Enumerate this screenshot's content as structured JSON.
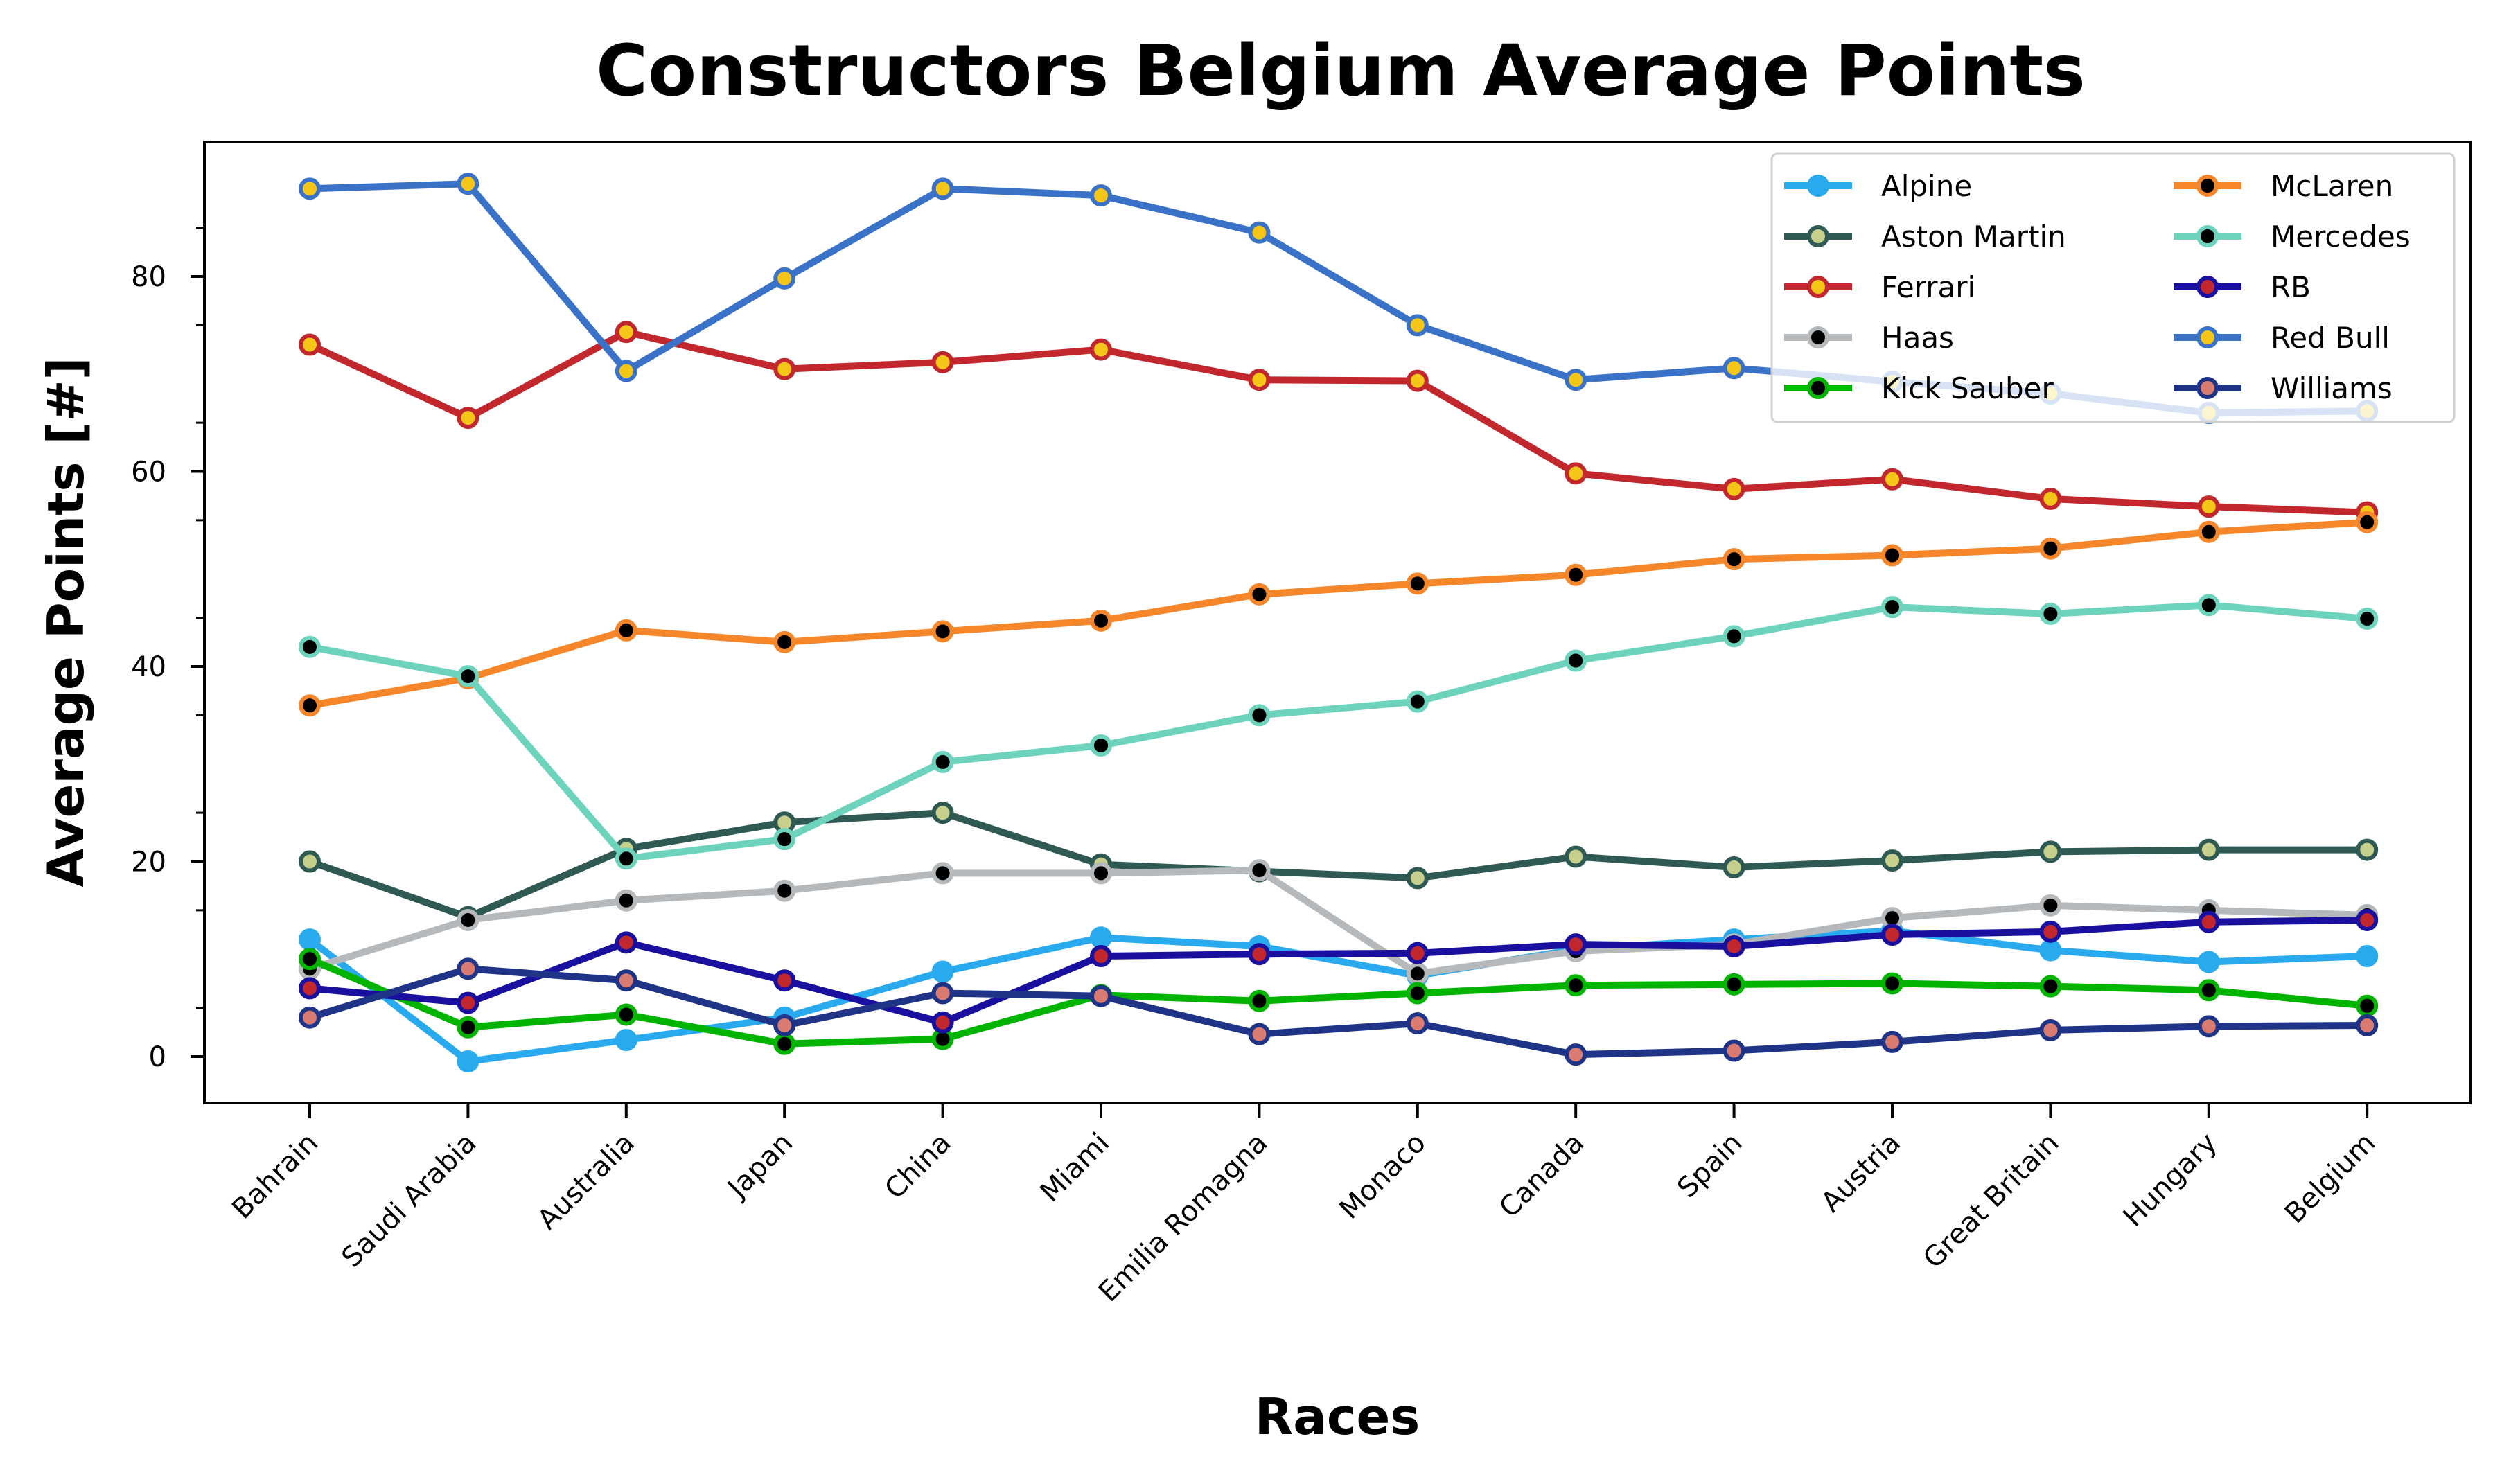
{
  "chart_data": {
    "type": "line",
    "title": "Constructors Belgium Average Points",
    "xlabel": "Races",
    "ylabel": "Average Points [#]",
    "ylim": [
      -5,
      94
    ],
    "yticks": [
      0,
      20,
      40,
      60,
      80
    ],
    "grid": false,
    "legend_position": "top-right",
    "categories": [
      "Bahrain",
      "Saudi Arabia",
      "Australia",
      "Japan",
      "China",
      "Miami",
      "Emilia Romagna",
      "Monaco",
      "Canada",
      "Spain",
      "Austria",
      "Great Britain",
      "Hungary",
      "Belgium"
    ],
    "series": [
      {
        "name": "Alpine",
        "color": "#29aaee",
        "marker_fill": "#29aaee",
        "values": [
          12,
          -0.5,
          1.7,
          4,
          8.7,
          12.2,
          11.3,
          8.3,
          11,
          12,
          12.9,
          10.9,
          9.7,
          10.3
        ]
      },
      {
        "name": "Aston Martin",
        "color": "#2f5a53",
        "marker_fill": "#c7cf8c",
        "values": [
          20,
          14.3,
          21.3,
          24,
          25,
          19.7,
          19,
          18.3,
          20.5,
          19.4,
          20.1,
          21,
          21.2,
          21.2
        ]
      },
      {
        "name": "Ferrari",
        "color": "#c1272d",
        "marker_fill": "#f5c518",
        "values": [
          73,
          65.5,
          74.3,
          70.5,
          71.2,
          72.5,
          69.4,
          69.3,
          59.8,
          58.2,
          59.2,
          57.2,
          56.4,
          55.8
        ]
      },
      {
        "name": "Haas",
        "color": "#b6b9bc",
        "marker_fill": "#000000",
        "values": [
          9,
          14,
          16,
          17,
          18.8,
          18.8,
          19.1,
          8.5,
          10.8,
          11.5,
          14.2,
          15.5,
          15,
          14.5
        ]
      },
      {
        "name": "Kick Sauber",
        "color": "#00b400",
        "marker_fill": "#000000",
        "values": [
          10,
          3,
          4.3,
          1.3,
          1.8,
          6.3,
          5.7,
          6.5,
          7.3,
          7.4,
          7.5,
          7.2,
          6.8,
          5.2
        ]
      },
      {
        "name": "McLaren",
        "color": "#f5862a",
        "marker_fill": "#000000",
        "values": [
          36,
          38.8,
          43.7,
          42.5,
          43.6,
          44.7,
          47.4,
          48.5,
          49.4,
          51,
          51.4,
          52.1,
          53.8,
          54.8
        ]
      },
      {
        "name": "Mercedes",
        "color": "#6dd3bd",
        "marker_fill": "#000000",
        "values": [
          42,
          39,
          20.3,
          22.3,
          30.2,
          31.9,
          35,
          36.4,
          40.6,
          43.1,
          46.1,
          45.4,
          46.3,
          44.9
        ]
      },
      {
        "name": "RB",
        "color": "#1a10a0",
        "marker_fill": "#c1272d",
        "values": [
          7,
          5.5,
          11.7,
          7.8,
          3.5,
          10.3,
          10.5,
          10.6,
          11.5,
          11.3,
          12.5,
          12.8,
          13.8,
          14
        ]
      },
      {
        "name": "Red Bull",
        "color": "#3a72c8",
        "marker_fill": "#f5c518",
        "values": [
          89,
          89.5,
          70.3,
          79.8,
          89,
          88.3,
          84.5,
          75,
          69.4,
          70.6,
          69.2,
          68,
          66,
          66.2
        ]
      },
      {
        "name": "Williams",
        "color": "#1f3487",
        "marker_fill": "#d97b71",
        "values": [
          4,
          9,
          7.8,
          3.2,
          6.5,
          6.2,
          2.3,
          3.4,
          0.2,
          0.6,
          1.5,
          2.7,
          3.1,
          3.2
        ]
      }
    ]
  }
}
